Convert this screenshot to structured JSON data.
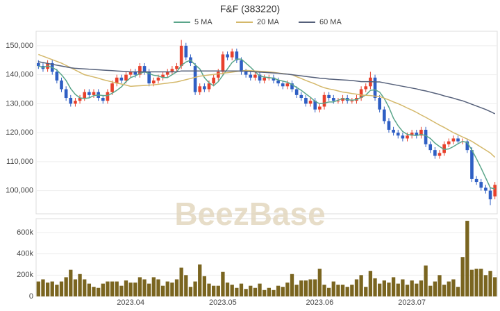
{
  "chart_data": [
    {
      "type": "candlestick",
      "title": "F&F (383220)",
      "watermark": "BeezBase",
      "up_color": "#e8412c",
      "down_color": "#2f5fc4",
      "grid": true,
      "ylim": [
        92000,
        155000
      ],
      "yticks": [
        {
          "value": 100000,
          "label": "100,000"
        },
        {
          "value": 110000,
          "label": "110,000"
        },
        {
          "value": 120000,
          "label": "120,000"
        },
        {
          "value": 130000,
          "label": "130,000"
        },
        {
          "value": 140000,
          "label": "140,000"
        },
        {
          "value": 150000,
          "label": "150,000"
        }
      ],
      "open": [
        144000,
        143000,
        142000,
        144000,
        141000,
        138000,
        135000,
        132000,
        130000,
        131000,
        132000,
        134000,
        133000,
        134000,
        132000,
        131000,
        134000,
        137000,
        139000,
        138000,
        140000,
        141000,
        140000,
        143000,
        141000,
        137000,
        138000,
        139000,
        140000,
        141000,
        142000,
        143000,
        150000,
        146000,
        143000,
        134000,
        136000,
        135000,
        137000,
        139000,
        141000,
        147000,
        146000,
        148000,
        145000,
        141000,
        140000,
        139000,
        140000,
        138000,
        139000,
        139000,
        138000,
        137000,
        136000,
        137000,
        135000,
        133000,
        132000,
        130000,
        131000,
        128000,
        129000,
        133000,
        132000,
        131000,
        131000,
        132000,
        131000,
        131000,
        132000,
        135000,
        136000,
        139000,
        132000,
        128000,
        124000,
        121000,
        120000,
        119000,
        118000,
        119000,
        120000,
        119000,
        121000,
        116000,
        114000,
        112000,
        113000,
        116000,
        117000,
        118000,
        117000,
        117000,
        114000,
        104000,
        103000,
        101000,
        100000,
        98000
      ],
      "high": [
        145000,
        144000,
        145000,
        145000,
        142000,
        139000,
        136000,
        133000,
        132000,
        133000,
        135000,
        135000,
        135000,
        135000,
        133000,
        135000,
        138000,
        140000,
        140000,
        141000,
        142000,
        142000,
        144000,
        144000,
        142000,
        139000,
        140000,
        141000,
        142000,
        143000,
        144000,
        152000,
        151000,
        147000,
        144000,
        137000,
        137000,
        138000,
        140000,
        142000,
        148000,
        148000,
        149000,
        149000,
        146000,
        142000,
        141000,
        141000,
        141000,
        140000,
        140000,
        140000,
        139000,
        138000,
        138000,
        138000,
        136000,
        134000,
        133000,
        132000,
        132000,
        130000,
        134000,
        134000,
        133000,
        132000,
        133000,
        133000,
        132000,
        133000,
        136000,
        137000,
        141000,
        140000,
        133000,
        129000,
        125000,
        122000,
        121000,
        120000,
        120000,
        121000,
        121000,
        122000,
        122000,
        117000,
        115000,
        114000,
        117000,
        118000,
        119000,
        119000,
        118000,
        118000,
        115000,
        105000,
        104000,
        102000,
        101000,
        103000
      ],
      "low": [
        142000,
        141000,
        141000,
        140000,
        137000,
        134000,
        131000,
        129000,
        129000,
        130000,
        131000,
        132000,
        132000,
        131000,
        130000,
        130000,
        133000,
        136000,
        137000,
        137000,
        139000,
        139000,
        139000,
        140000,
        136000,
        136000,
        137000,
        138000,
        139000,
        140000,
        141000,
        142000,
        145000,
        143000,
        133000,
        133000,
        134000,
        134000,
        136000,
        138000,
        140000,
        145000,
        145000,
        144000,
        140000,
        139000,
        138000,
        138000,
        137000,
        137000,
        138000,
        137000,
        136000,
        135000,
        135000,
        134000,
        132000,
        131000,
        129000,
        129000,
        127000,
        127000,
        128000,
        131000,
        130000,
        130000,
        130000,
        130000,
        130000,
        130000,
        131000,
        134000,
        135000,
        131000,
        127000,
        123000,
        120000,
        119000,
        118000,
        117000,
        117000,
        118000,
        118000,
        118000,
        115000,
        113000,
        111000,
        111000,
        112000,
        115000,
        116000,
        116000,
        116000,
        113000,
        103000,
        102000,
        100000,
        99000,
        95000,
        97000
      ],
      "close": [
        143000,
        142000,
        144000,
        141000,
        138000,
        135000,
        132000,
        130000,
        131000,
        132000,
        134000,
        133000,
        134000,
        132000,
        131000,
        134000,
        137000,
        139000,
        138000,
        140000,
        141000,
        140000,
        143000,
        141000,
        137000,
        138000,
        139000,
        140000,
        141000,
        142000,
        143000,
        150000,
        146000,
        144000,
        134000,
        136000,
        135000,
        137000,
        139000,
        141000,
        147000,
        146000,
        148000,
        145000,
        141000,
        140000,
        139000,
        140000,
        138000,
        139000,
        139000,
        138000,
        137000,
        136000,
        137000,
        135000,
        133000,
        132000,
        130000,
        131000,
        128000,
        129000,
        133000,
        132000,
        131000,
        131000,
        132000,
        131000,
        131000,
        132000,
        135000,
        136000,
        139000,
        132000,
        128000,
        124000,
        121000,
        120000,
        119000,
        118000,
        119000,
        120000,
        119000,
        121000,
        116000,
        114000,
        112000,
        113000,
        116000,
        117000,
        118000,
        117000,
        117000,
        114000,
        104000,
        103000,
        101000,
        100000,
        97000,
        102000
      ],
      "series": [
        {
          "name": "5 MA",
          "color": "#5aa58a",
          "values": [
            143000,
            142500,
            143000,
            142500,
            141600,
            140000,
            138000,
            135200,
            133200,
            132000,
            131800,
            132000,
            132800,
            133000,
            132800,
            132800,
            133600,
            134600,
            135800,
            137600,
            139000,
            139600,
            140400,
            141000,
            140400,
            139800,
            139600,
            139000,
            139000,
            140000,
            141000,
            143200,
            144400,
            145000,
            143400,
            142000,
            139000,
            137200,
            136200,
            137600,
            139800,
            142000,
            144200,
            145400,
            145400,
            144000,
            142600,
            141000,
            139600,
            139200,
            139000,
            138800,
            138200,
            137800,
            137400,
            136600,
            135600,
            134600,
            133400,
            132200,
            130800,
            130000,
            130200,
            130600,
            130600,
            131200,
            131800,
            131400,
            131200,
            131400,
            132200,
            133000,
            134600,
            134800,
            134000,
            131800,
            128800,
            125000,
            122400,
            120400,
            119400,
            119200,
            119000,
            119400,
            119000,
            118000,
            116400,
            115200,
            114200,
            114400,
            115200,
            116200,
            117000,
            116600,
            114000,
            111000,
            107800,
            104400,
            101000,
            100600
          ]
        },
        {
          "name": "20 MA",
          "color": "#d4b86a",
          "values": [
            147000,
            146400,
            145800,
            145200,
            144600,
            144000,
            143200,
            142400,
            141600,
            140800,
            140000,
            139600,
            139200,
            138800,
            138300,
            137900,
            137500,
            137100,
            136800,
            136400,
            136000,
            136100,
            136200,
            136300,
            136400,
            136500,
            136700,
            136900,
            137100,
            137300,
            137500,
            137900,
            138300,
            138700,
            139100,
            139500,
            139700,
            139900,
            140100,
            140300,
            140500,
            140700,
            140900,
            141100,
            141300,
            141500,
            141400,
            141300,
            141200,
            141100,
            141000,
            140800,
            140600,
            140400,
            140200,
            140000,
            139300,
            138700,
            138000,
            137400,
            136800,
            136100,
            135500,
            135100,
            134800,
            134400,
            134000,
            133800,
            133500,
            133300,
            133000,
            132900,
            132800,
            132600,
            132500,
            131900,
            131300,
            130600,
            130000,
            129300,
            128500,
            127800,
            127000,
            126100,
            125300,
            124400,
            123500,
            122600,
            121800,
            120900,
            120000,
            119300,
            118500,
            117800,
            117000,
            116000,
            115000,
            114000,
            113000,
            111500
          ]
        },
        {
          "name": "60 MA",
          "color": "#55607a",
          "values": [
            144500,
            144200,
            143900,
            143600,
            143300,
            143000,
            142700,
            142400,
            142200,
            142100,
            142000,
            141900,
            141800,
            141700,
            141600,
            141500,
            141400,
            141300,
            141200,
            141100,
            141000,
            141000,
            141000,
            141000,
            141000,
            141000,
            141000,
            141000,
            141000,
            141000,
            141000,
            141300,
            141300,
            141300,
            141300,
            141300,
            141300,
            141300,
            141300,
            141300,
            141300,
            141300,
            141300,
            141300,
            141300,
            141200,
            141100,
            141000,
            140900,
            140800,
            140700,
            140600,
            140500,
            140300,
            140200,
            140000,
            139800,
            139600,
            139400,
            139200,
            139000,
            138800,
            138700,
            138500,
            138400,
            138300,
            138200,
            138100,
            138000,
            137800,
            137600,
            137600,
            137600,
            137500,
            137500,
            137200,
            136900,
            136600,
            136300,
            136000,
            135700,
            135400,
            135100,
            134700,
            134400,
            134000,
            133600,
            133200,
            132700,
            132300,
            131900,
            131400,
            131000,
            130400,
            129800,
            129200,
            128600,
            128000,
            127300,
            126500
          ]
        }
      ]
    },
    {
      "type": "bar",
      "color": "#7a6520",
      "grid": true,
      "ylim": [
        0,
        730000
      ],
      "yticks": [
        0,
        {
          "value": 200000,
          "label": "200k"
        },
        {
          "value": 400000,
          "label": "400k"
        },
        {
          "value": 600000,
          "label": "600k"
        }
      ],
      "categories": [
        null,
        null,
        null,
        null,
        null,
        null,
        null,
        null,
        null,
        null,
        null,
        null,
        null,
        null,
        null,
        null,
        null,
        null,
        null,
        null,
        "2023.04",
        null,
        null,
        null,
        null,
        null,
        null,
        null,
        null,
        null,
        null,
        null,
        null,
        null,
        null,
        null,
        null,
        null,
        null,
        null,
        "2023.05",
        null,
        null,
        null,
        null,
        null,
        null,
        null,
        null,
        null,
        null,
        null,
        null,
        null,
        null,
        null,
        null,
        null,
        null,
        null,
        null,
        "2023.06",
        null,
        null,
        null,
        null,
        null,
        null,
        null,
        null,
        null,
        null,
        null,
        null,
        null,
        null,
        null,
        null,
        null,
        null,
        null,
        "2023.07",
        null,
        null,
        null,
        null,
        null,
        null,
        null,
        null,
        null,
        null,
        null,
        null,
        null,
        null,
        null,
        null,
        null,
        null
      ],
      "values": [
        140000,
        160000,
        130000,
        140000,
        110000,
        140000,
        180000,
        250000,
        160000,
        210000,
        160000,
        120000,
        90000,
        80000,
        120000,
        140000,
        140000,
        140000,
        100000,
        150000,
        130000,
        130000,
        180000,
        160000,
        120000,
        180000,
        160000,
        100000,
        140000,
        130000,
        160000,
        270000,
        200000,
        90000,
        140000,
        300000,
        190000,
        120000,
        100000,
        100000,
        230000,
        130000,
        110000,
        80000,
        120000,
        70000,
        100000,
        80000,
        120000,
        60000,
        80000,
        60000,
        100000,
        90000,
        130000,
        210000,
        110000,
        150000,
        150000,
        160000,
        160000,
        260000,
        110000,
        80000,
        140000,
        110000,
        110000,
        90000,
        110000,
        160000,
        200000,
        90000,
        240000,
        170000,
        120000,
        150000,
        130000,
        180000,
        120000,
        160000,
        110000,
        150000,
        120000,
        150000,
        290000,
        100000,
        140000,
        200000,
        110000,
        140000,
        160000,
        90000,
        370000,
        710000,
        250000,
        260000,
        260000,
        200000,
        240000,
        180000
      ]
    }
  ]
}
